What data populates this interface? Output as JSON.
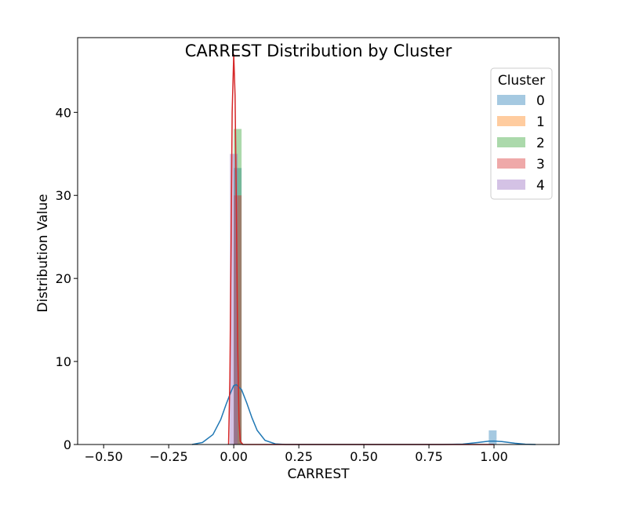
{
  "chart_data": {
    "type": "histogram-kde",
    "title": "CARREST Distribution by Cluster",
    "xlabel": "CARREST",
    "ylabel": "Distribution Value",
    "xlim": [
      -0.6,
      1.25
    ],
    "ylim": [
      0,
      49
    ],
    "xticks": [
      -0.5,
      -0.25,
      0.0,
      0.25,
      0.5,
      0.75,
      1.0
    ],
    "xtick_labels": [
      "−0.50",
      "−0.25",
      "0.00",
      "0.25",
      "0.50",
      "0.75",
      "1.00"
    ],
    "yticks": [
      0,
      10,
      20,
      30,
      40
    ],
    "ytick_labels": [
      "0",
      "10",
      "20",
      "30",
      "40"
    ],
    "grid": false,
    "legend": {
      "title": "Cluster",
      "position": "top-right"
    },
    "series": [
      {
        "name": "0",
        "color": "#1f77b4",
        "bars": [
          {
            "x0": 0.0,
            "x1": 0.03,
            "h": 33.3
          },
          {
            "x0": 0.98,
            "x1": 1.01,
            "h": 1.7
          }
        ],
        "kde": [
          [
            -0.16,
            0
          ],
          [
            -0.12,
            0.25
          ],
          [
            -0.08,
            1.2
          ],
          [
            -0.05,
            3.0
          ],
          [
            -0.03,
            4.8
          ],
          [
            -0.01,
            6.4
          ],
          [
            0.0,
            7.1
          ],
          [
            0.01,
            7.2
          ],
          [
            0.03,
            6.6
          ],
          [
            0.05,
            5.0
          ],
          [
            0.07,
            3.2
          ],
          [
            0.09,
            1.7
          ],
          [
            0.12,
            0.5
          ],
          [
            0.16,
            0.08
          ],
          [
            0.2,
            0.0
          ],
          [
            0.8,
            0.0
          ],
          [
            0.88,
            0.05
          ],
          [
            0.94,
            0.25
          ],
          [
            0.98,
            0.4
          ],
          [
            1.0,
            0.42
          ],
          [
            1.03,
            0.35
          ],
          [
            1.08,
            0.15
          ],
          [
            1.12,
            0.04
          ],
          [
            1.16,
            0
          ]
        ]
      },
      {
        "name": "1",
        "color": "#ff7f0e",
        "bars": [],
        "kde": []
      },
      {
        "name": "2",
        "color": "#2ca02c",
        "bars": [
          {
            "x0": 0.0,
            "x1": 0.03,
            "h": 38
          }
        ],
        "kde": []
      },
      {
        "name": "3",
        "color": "#d62728",
        "bars": [
          {
            "x0": 0.0,
            "x1": 0.03,
            "h": 30
          }
        ],
        "kde": [
          [
            -0.02,
            0
          ],
          [
            -0.015,
            8
          ],
          [
            -0.01,
            25
          ],
          [
            -0.006,
            40
          ],
          [
            0.0,
            47
          ],
          [
            0.005,
            42
          ],
          [
            0.01,
            28
          ],
          [
            0.015,
            12
          ],
          [
            0.02,
            3
          ],
          [
            0.025,
            0.4
          ],
          [
            0.035,
            0
          ],
          [
            0.12,
            0
          ],
          [
            0.6,
            0
          ],
          [
            1.0,
            0.0
          ]
        ]
      },
      {
        "name": "4",
        "color": "#9467bd",
        "bars": [
          {
            "x0": -0.015,
            "x1": 0.015,
            "h": 35
          }
        ],
        "kde": []
      }
    ]
  }
}
